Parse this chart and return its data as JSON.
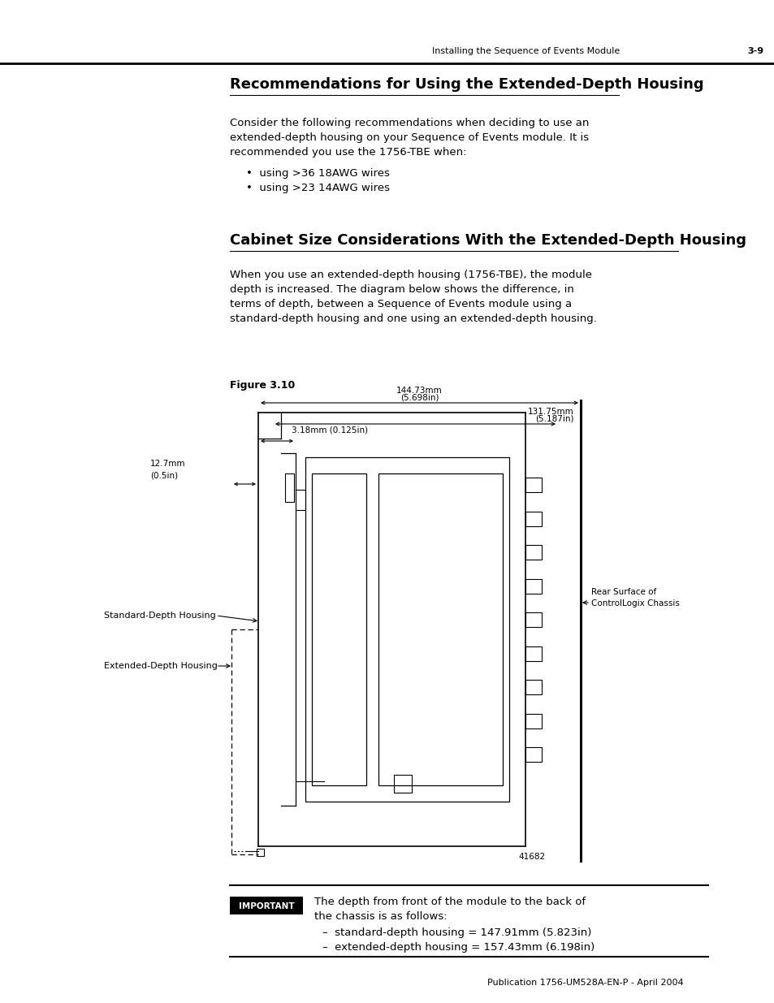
{
  "page_header_text": "Installing the Sequence of Events Module",
  "page_number": "3-9",
  "footer_text": "Publication 1756-UM528A-EN-P - April 2004",
  "title1": "Recommendations for Using the Extended-Depth Housing",
  "para1_lines": [
    "Consider the following recommendations when deciding to use an",
    "extended-depth housing on your Sequence of Events module. It is",
    "recommended you use the 1756-TBE when:"
  ],
  "bullet1": "using >36 18AWG wires",
  "bullet2": "using >23 14AWG wires",
  "title2": "Cabinet Size Considerations With the Extended-Depth Housing",
  "para2_lines": [
    "When you use an extended-depth housing (1756-TBE), the module",
    "depth is increased. The diagram below shows the difference, in",
    "terms of depth, between a Sequence of Events module using a",
    "standard-depth housing and one using an extended-depth housing."
  ],
  "figure_label": "Figure 3.10",
  "dim_total_top": "144.73mm",
  "dim_total_bot": "(5.698in)",
  "dim_inner_top": "131.75mm",
  "dim_inner_bot": "(5.187in)",
  "dim_small": "3.18mm (0.125in)",
  "dim_ext": "12.7mm",
  "dim_ext2": "(0.5in)",
  "label_rear_line1": "Rear Surface of",
  "label_rear_line2": "ControlLogix Chassis",
  "label_std": "Standard-Depth Housing",
  "label_ext": "Extended-Depth Housing",
  "fig_num": "41682",
  "important_label": "IMPORTANT",
  "imp_text1": "The depth from front of the module to the back of",
  "imp_text2": "the chassis is as follows:",
  "imp_bullet1": "standard-depth housing = 147.91mm (5.823in)",
  "imp_bullet2": "extended-depth housing = 157.43mm (6.198in)"
}
